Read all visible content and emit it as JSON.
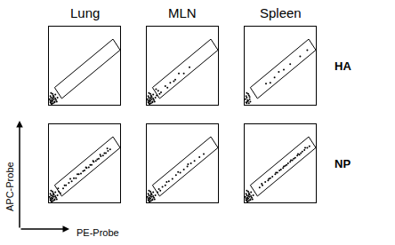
{
  "columns": [
    "Lung",
    "MLN",
    "Spleen"
  ],
  "rows": [
    "HA",
    "NP"
  ],
  "axis_labels": {
    "x": "PE-Probe",
    "y": "APC-Probe"
  },
  "chart_data": [
    {
      "type": "scatter",
      "column": "Lung",
      "row": "HA",
      "color": "#000000",
      "tick_labels": false,
      "xlim": [
        0,
        100
      ],
      "ylim": [
        0,
        100
      ],
      "gate": {
        "x": [
          8,
          18,
          100,
          90,
          8
        ],
        "y": [
          22,
          8,
          70,
          84,
          22
        ]
      },
      "x": [
        2,
        4,
        6,
        3,
        5,
        8,
        1,
        7,
        9,
        3,
        6,
        4,
        2,
        10,
        5,
        7,
        3,
        8,
        12,
        6,
        4,
        9,
        2,
        11,
        5
      ],
      "y": [
        3,
        6,
        2,
        9,
        5,
        4,
        7,
        10,
        8,
        2,
        12,
        4,
        11,
        6,
        14,
        7,
        15,
        3,
        9,
        10,
        1,
        13,
        5,
        4,
        8
      ]
    },
    {
      "type": "scatter",
      "column": "MLN",
      "row": "HA",
      "color": "#000000",
      "tick_labels": false,
      "xlim": [
        0,
        100
      ],
      "ylim": [
        0,
        100
      ],
      "gate": {
        "x": [
          8,
          18,
          100,
          90,
          8
        ],
        "y": [
          22,
          8,
          70,
          84,
          22
        ]
      },
      "x": [
        2,
        4,
        6,
        3,
        5,
        8,
        1,
        7,
        9,
        3,
        6,
        4,
        2,
        10,
        5,
        7,
        3,
        8,
        12,
        6,
        4,
        9,
        2,
        11,
        5,
        14,
        16,
        18,
        13,
        20,
        26,
        33,
        40,
        45,
        52,
        60,
        38,
        29
      ],
      "y": [
        3,
        6,
        2,
        9,
        5,
        4,
        7,
        10,
        8,
        2,
        12,
        4,
        11,
        6,
        14,
        7,
        15,
        3,
        9,
        10,
        1,
        13,
        5,
        4,
        8,
        12,
        18,
        14,
        20,
        16,
        24,
        28,
        32,
        40,
        40,
        48,
        30,
        22
      ]
    },
    {
      "type": "scatter",
      "column": "Spleen",
      "row": "HA",
      "color": "#000000",
      "tick_labels": false,
      "xlim": [
        0,
        100
      ],
      "ylim": [
        0,
        100
      ],
      "gate": {
        "x": [
          8,
          18,
          100,
          90,
          8
        ],
        "y": [
          22,
          8,
          70,
          84,
          22
        ]
      },
      "x": [
        2,
        4,
        6,
        3,
        5,
        8,
        1,
        7,
        3,
        6,
        4,
        2,
        5,
        7,
        3,
        30,
        42,
        55,
        64,
        78,
        48,
        88,
        36
      ],
      "y": [
        3,
        6,
        2,
        9,
        5,
        4,
        7,
        10,
        2,
        12,
        4,
        11,
        14,
        7,
        15,
        27,
        35,
        45,
        52,
        62,
        42,
        70,
        28
      ]
    },
    {
      "type": "scatter",
      "column": "Lung",
      "row": "NP",
      "color": "#000000",
      "tick_labels": false,
      "xlim": [
        0,
        100
      ],
      "ylim": [
        0,
        100
      ],
      "gate": {
        "x": [
          8,
          18,
          100,
          90,
          8
        ],
        "y": [
          22,
          8,
          70,
          84,
          22
        ]
      },
      "x": [
        2,
        4,
        6,
        3,
        5,
        8,
        1,
        7,
        9,
        3,
        6,
        4,
        2,
        10,
        5,
        7,
        3,
        8,
        12,
        6,
        4,
        9,
        2,
        11,
        5,
        14,
        16,
        13,
        20,
        24,
        28,
        32,
        35,
        38,
        42,
        45,
        48,
        50,
        53,
        56,
        58,
        60,
        63,
        66,
        68,
        70,
        73,
        76,
        78,
        80,
        83,
        86,
        22,
        30,
        40,
        52,
        62,
        72,
        82
      ],
      "y": [
        3,
        6,
        2,
        9,
        5,
        4,
        7,
        10,
        8,
        2,
        12,
        4,
        11,
        6,
        14,
        7,
        15,
        3,
        9,
        10,
        1,
        13,
        5,
        4,
        8,
        14,
        12,
        18,
        18,
        22,
        25,
        27,
        31,
        31,
        36,
        37,
        40,
        41,
        44,
        45,
        48,
        48,
        52,
        53,
        55,
        56,
        59,
        60,
        63,
        63,
        66,
        68,
        22,
        30,
        36,
        45,
        53,
        61,
        69
      ]
    },
    {
      "type": "scatter",
      "column": "MLN",
      "row": "NP",
      "color": "#000000",
      "tick_labels": false,
      "xlim": [
        0,
        100
      ],
      "ylim": [
        0,
        100
      ],
      "gate": {
        "x": [
          8,
          18,
          100,
          90,
          8
        ],
        "y": [
          22,
          8,
          70,
          84,
          22
        ]
      },
      "x": [
        2,
        4,
        6,
        3,
        5,
        8,
        1,
        7,
        9,
        3,
        6,
        4,
        2,
        10,
        5,
        7,
        3,
        8,
        12,
        6,
        4,
        9,
        2,
        11,
        5,
        15,
        17,
        19,
        22,
        26,
        31,
        36,
        41,
        47,
        52,
        57,
        62,
        67,
        74,
        80,
        28,
        44,
        58
      ],
      "y": [
        3,
        6,
        2,
        9,
        5,
        4,
        7,
        10,
        8,
        2,
        12,
        4,
        11,
        6,
        14,
        7,
        15,
        3,
        9,
        10,
        1,
        13,
        5,
        4,
        8,
        13,
        17,
        15,
        20,
        22,
        27,
        30,
        35,
        38,
        42,
        46,
        50,
        53,
        58,
        62,
        26,
        39,
        49
      ]
    },
    {
      "type": "scatter",
      "column": "Spleen",
      "row": "NP",
      "color": "#000000",
      "tick_labels": false,
      "xlim": [
        0,
        100
      ],
      "ylim": [
        0,
        100
      ],
      "gate": {
        "x": [
          8,
          18,
          100,
          90,
          8
        ],
        "y": [
          22,
          8,
          70,
          84,
          22
        ]
      },
      "x": [
        2,
        4,
        6,
        3,
        5,
        8,
        1,
        7,
        9,
        3,
        6,
        4,
        2,
        10,
        5,
        7,
        3,
        8,
        12,
        6,
        4,
        9,
        2,
        11,
        5,
        21,
        25,
        29,
        33,
        36,
        39,
        43,
        46,
        49,
        51,
        54,
        57,
        59,
        61,
        64,
        67,
        69,
        71,
        74,
        77,
        79,
        81,
        84,
        88,
        91,
        24,
        34,
        44,
        55,
        65,
        75,
        85
      ],
      "y": [
        3,
        6,
        2,
        9,
        5,
        4,
        7,
        10,
        8,
        2,
        12,
        4,
        11,
        6,
        14,
        7,
        15,
        3,
        9,
        10,
        1,
        13,
        5,
        4,
        8,
        19,
        22,
        26,
        28,
        31,
        33,
        36,
        38,
        41,
        42,
        44,
        47,
        48,
        50,
        52,
        54,
        56,
        57,
        60,
        61,
        63,
        65,
        67,
        70,
        72,
        24,
        30,
        38,
        46,
        54,
        62,
        70
      ]
    }
  ]
}
